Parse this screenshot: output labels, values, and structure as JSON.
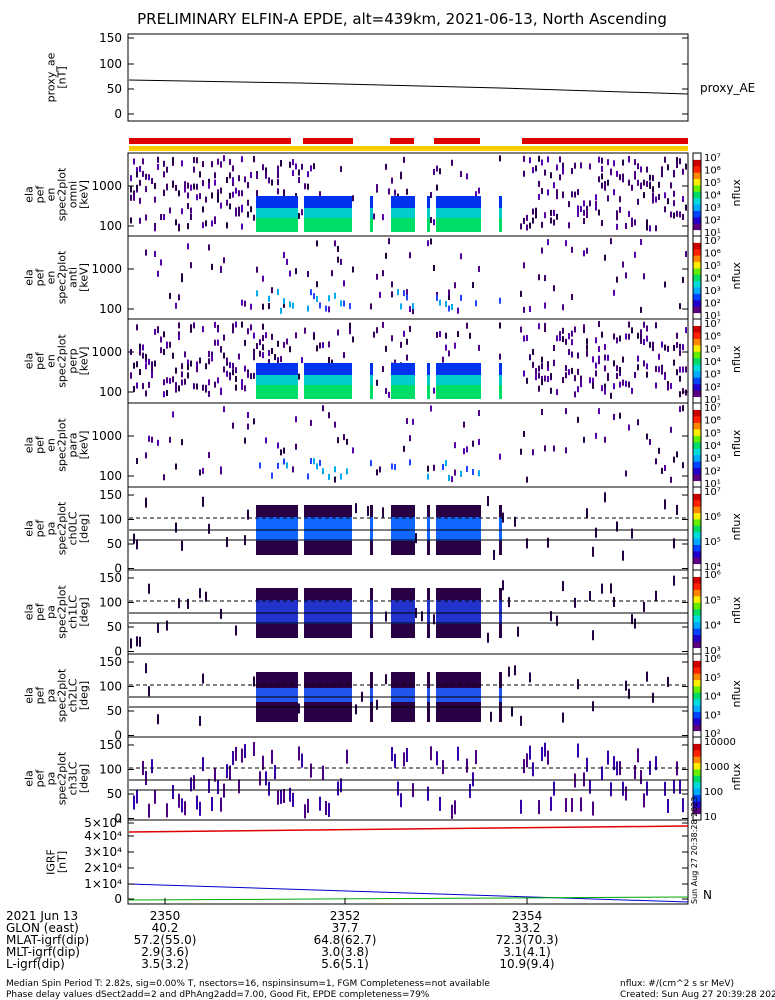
{
  "title": "PRELIMINARY ELFIN-A EPDE, alt=439km, 2021-06-13, North Ascending",
  "panels": [
    {
      "id": "ae",
      "ylabel": "proxy_ae\n[nT]",
      "yticks": [
        "150",
        "100",
        "50",
        "0"
      ],
      "right_label": "proxy_AE"
    },
    {
      "id": "omni",
      "ylabel": "ela\npef\nen\nspec2plot\nomni\n[keV]",
      "yticks": [
        "1000",
        "100"
      ],
      "cbar_ticks": [
        "10⁷",
        "10⁶",
        "10⁵",
        "10⁴",
        "10³",
        "10²",
        "10¹"
      ],
      "cbar_label": "nflux"
    },
    {
      "id": "anti",
      "ylabel": "ela\npef\nen\nspec2plot\nanti\n[keV]",
      "yticks": [
        "1000",
        "100"
      ],
      "cbar_ticks": [
        "10⁷",
        "10⁶",
        "10⁵",
        "10⁴",
        "10³",
        "10²",
        "10¹"
      ],
      "cbar_label": "nflux"
    },
    {
      "id": "perp",
      "ylabel": "ela\npef\nen\nspec2plot\nperp\n[keV]",
      "yticks": [
        "1000",
        "100"
      ],
      "cbar_ticks": [
        "10⁷",
        "10⁶",
        "10⁵",
        "10⁴",
        "10³",
        "10²",
        "10¹"
      ],
      "cbar_label": "nflux"
    },
    {
      "id": "para",
      "ylabel": "ela\npef\nen\nspec2plot\npara\n[keV]",
      "yticks": [
        "1000",
        "100"
      ],
      "cbar_ticks": [
        "10⁷",
        "10⁶",
        "10⁵",
        "10⁴",
        "10³",
        "10²",
        "10¹"
      ],
      "cbar_label": "nflux"
    },
    {
      "id": "ch0",
      "ylabel": "ela\npef\npa\nspec2plot\nch0LC\n[deg]",
      "yticks": [
        "150",
        "100",
        "50",
        "0"
      ],
      "cbar_ticks": [
        "10⁷",
        "10⁶",
        "10⁵",
        "10⁴"
      ],
      "cbar_label": "nflux"
    },
    {
      "id": "ch1",
      "ylabel": "ela\npef\npa\nspec2plot\nch1LC\n[deg]",
      "yticks": [
        "150",
        "100",
        "50",
        "0"
      ],
      "cbar_ticks": [
        "10⁶",
        "10⁵",
        "10⁴",
        "10³"
      ],
      "cbar_label": "nflux"
    },
    {
      "id": "ch2",
      "ylabel": "ela\npef\npa\nspec2plot\nch2LC\n[deg]",
      "yticks": [
        "150",
        "100",
        "50",
        "0"
      ],
      "cbar_ticks": [
        "10⁶",
        "10⁵",
        "10⁴",
        "10³",
        "10²"
      ],
      "cbar_label": "nflux"
    },
    {
      "id": "ch3",
      "ylabel": "ela\npef\npa\nspec2plot\nch3LC\n[deg]",
      "yticks": [
        "150",
        "100",
        "50",
        "0"
      ],
      "cbar_ticks": [
        "10000",
        "1000",
        "100",
        "10"
      ],
      "cbar_label": "nflux"
    },
    {
      "id": "igrf",
      "ylabel": "IGRF\n[nT]",
      "yticks": [
        "5×10⁴",
        "4×10⁴",
        "3×10⁴",
        "2×10⁴",
        "1×10⁴",
        "0"
      ]
    }
  ],
  "orbit_rows": [
    {
      "label": "2021 Jun 13",
      "values": [
        "2350",
        "2352",
        "2354"
      ]
    },
    {
      "label": "GLON (east)",
      "values": [
        "40.2",
        "37.7",
        "33.2"
      ]
    },
    {
      "label": "MLAT-igrf(dip)",
      "values": [
        "57.2(55.0)",
        "64.8(62.7)",
        "72.3(70.3)"
      ]
    },
    {
      "label": "MLT-igrf(dip)",
      "values": [
        "2.9(3.6)",
        "3.0(3.8)",
        "3.1(4.1)"
      ]
    },
    {
      "label": "L-igrf(dip)",
      "values": [
        "3.5(3.2)",
        "5.6(5.1)",
        "10.9(9.4)"
      ]
    }
  ],
  "footer": {
    "line1": "Median Spin Period T: 2.82s, sig=0.00% T, nsectors=16, nspinsinsum=1, FGM Completeness=not available",
    "line2": "Phase delay values dSect2add=2 and dPhAng2add=7.00, Good Fit, EPDE completeness=79%",
    "right1": "nflux: #/(cm^2 s sr MeV)",
    "right2": "Created: Sun Aug 27 20:39:28 2023"
  },
  "side_stamp": "Sun Aug 27 20:38:28 2023",
  "igrf_labels": [
    "N"
  ],
  "colors": {
    "red": "#dd0000",
    "yellow": "#ffcc00",
    "blue": "#0000cc",
    "green": "#00aa00"
  },
  "chart_data": {
    "type": "heatmap",
    "proxy_ae_line": {
      "x": [
        "start",
        "end"
      ],
      "values": [
        69,
        44
      ]
    },
    "igrf_series": [
      {
        "name": "red",
        "values": [
          46000,
          48000
        ]
      },
      {
        "name": "blue",
        "values": [
          11500,
          0
        ]
      },
      {
        "name": "green",
        "values": [
          2000,
          2500
        ]
      }
    ],
    "dashed_reference_deg": 115,
    "solid_reference_deg": [
      90,
      69
    ]
  }
}
